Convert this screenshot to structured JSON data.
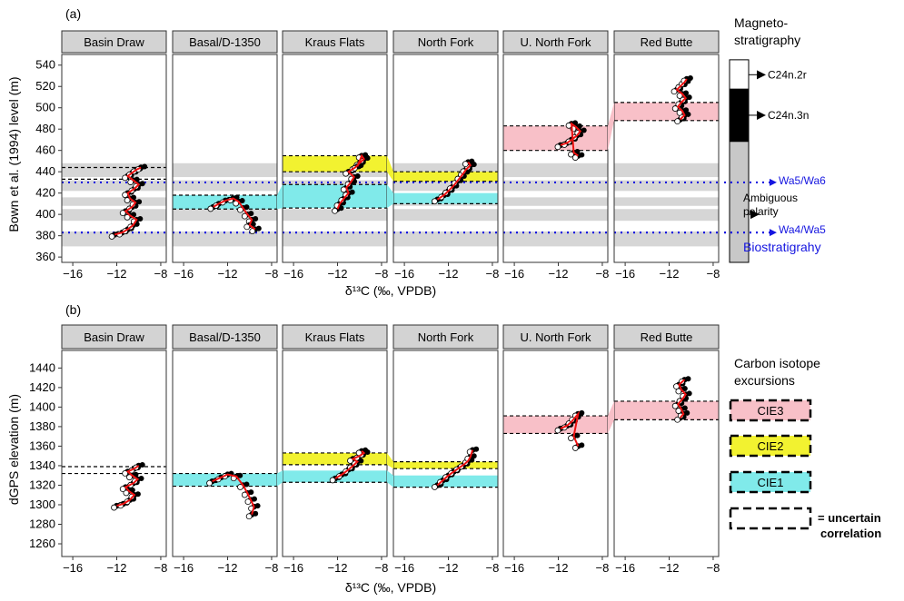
{
  "figure": {
    "panel_a_label": "(a)",
    "panel_b_label": "(b)"
  },
  "chart_data": [
    {
      "type": "scatter",
      "panel": "(a)",
      "facets": [
        "Basin Draw",
        "Basal/D-1350",
        "Kraus Flats",
        "North Fork",
        "U. North Fork",
        "Red Butte"
      ],
      "xlabel": "δ¹³C (‰, VPDB)",
      "ylabel": "Bown et al. (1994) level (m)",
      "xlim": [
        -17,
        -7.5
      ],
      "ylim": [
        355,
        550
      ],
      "xticks": [
        "−16",
        "−12",
        "−8"
      ],
      "xtick_values": [
        -16,
        -12,
        -8
      ],
      "yticks": [
        360,
        380,
        400,
        420,
        440,
        460,
        480,
        500,
        520,
        540
      ],
      "gray_bands": [
        [
          370,
          384
        ],
        [
          394,
          405
        ],
        [
          408,
          416
        ],
        [
          422,
          432
        ],
        [
          435,
          448
        ]
      ],
      "biostratigraphy_lines": [
        {
          "label": "Wa5/Wa6",
          "y": 430
        },
        {
          "label": "Wa4/Wa5",
          "y": 383
        }
      ],
      "cie_bands": [
        {
          "facet": "Basal/D-1350",
          "cie": "CIE1",
          "y": [
            405,
            418
          ]
        },
        {
          "facet": "Kraus Flats",
          "cie": "CIE1",
          "y": [
            406,
            428
          ]
        },
        {
          "facet": "Kraus Flats",
          "cie": "CIE2",
          "y": [
            440,
            455
          ]
        },
        {
          "facet": "North Fork",
          "cie": "CIE1",
          "y": [
            410,
            420
          ]
        },
        {
          "facet": "North Fork",
          "cie": "CIE2",
          "y": [
            431,
            440
          ]
        },
        {
          "facet": "U. North Fork",
          "cie": "CIE3",
          "y": [
            460,
            483
          ]
        },
        {
          "facet": "Red Butte",
          "cie": "CIE3",
          "y": [
            488,
            505
          ]
        }
      ],
      "uncertain_lines": [
        {
          "facet": "Basin Draw",
          "y": [
            433,
            444
          ]
        },
        {
          "facet": "Basal/D-1350",
          "y": [
            405,
            418
          ]
        },
        {
          "facet": "Kraus Flats",
          "y": [
            406,
            428,
            440,
            455
          ]
        },
        {
          "facet": "North Fork",
          "y": [
            410,
            431,
            440
          ]
        },
        {
          "facet": "U. North Fork",
          "y": [
            460,
            483
          ]
        },
        {
          "facet": "Red Butte",
          "y": [
            488,
            505
          ]
        }
      ],
      "series": [
        {
          "facet": "Basin Draw",
          "x": [
            -12.2,
            -11.5,
            -11.0,
            -10.5,
            -10.2,
            -10.8,
            -11.2,
            -10.6,
            -10.3,
            -10.8,
            -11.0,
            -10.4,
            -10.0,
            -10.5,
            -11.0,
            -10.6,
            -10.2,
            -9.8
          ],
          "y": [
            381,
            383,
            386,
            390,
            395,
            399,
            403,
            407,
            411,
            415,
            420,
            424,
            428,
            432,
            436,
            439,
            442,
            444
          ]
        },
        {
          "facet": "Basal/D-1350",
          "x": [
            -13.3,
            -12.8,
            -12.2,
            -11.5,
            -11.0,
            -10.6,
            -10.2,
            -9.8,
            -10.0,
            -9.5
          ],
          "y": [
            407,
            410,
            413,
            415,
            412,
            406,
            400,
            395,
            390,
            386
          ]
        },
        {
          "facet": "Kraus Flats",
          "x": [
            -12.0,
            -11.8,
            -11.4,
            -11.0,
            -11.2,
            -10.8,
            -10.5,
            -11.0,
            -10.4,
            -10.0,
            -9.6,
            -9.8,
            -10.2
          ],
          "y": [
            405,
            410,
            415,
            420,
            425,
            430,
            435,
            440,
            444,
            448,
            452,
            455,
            445
          ]
        },
        {
          "facet": "North Fork",
          "x": [
            -13.0,
            -12.4,
            -12.0,
            -11.6,
            -11.2,
            -10.9,
            -10.6,
            -10.4,
            -10.0,
            -10.2
          ],
          "y": [
            414,
            418,
            422,
            426,
            431,
            435,
            439,
            442,
            446,
            449
          ]
        },
        {
          "facet": "U. North Fork",
          "x": [
            -11.8,
            -11.2,
            -10.8,
            -10.3,
            -10.0,
            -10.4,
            -10.8,
            -10.6,
            -10.2
          ],
          "y": [
            465,
            467,
            470,
            474,
            478,
            482,
            485,
            458,
            455
          ]
        },
        {
          "facet": "Red Butte",
          "x": [
            -11.0,
            -10.6,
            -10.8,
            -11.2,
            -10.9,
            -10.5,
            -10.8,
            -11.3,
            -10.9,
            -10.6,
            -10.4
          ],
          "y": [
            489,
            493,
            497,
            501,
            505,
            509,
            513,
            517,
            521,
            524,
            527
          ]
        }
      ]
    },
    {
      "type": "scatter",
      "panel": "(b)",
      "facets": [
        "Basin Draw",
        "Basal/D-1350",
        "Kraus Flats",
        "North Fork",
        "U. North Fork",
        "Red Butte"
      ],
      "xlabel": "δ¹³C (‰, VPDB)",
      "ylabel": "dGPS elevation (m)",
      "xlim": [
        -17,
        -7.5
      ],
      "ylim": [
        1247,
        1458
      ],
      "xticks": [
        "−16",
        "−12",
        "−8"
      ],
      "xtick_values": [
        -16,
        -12,
        -8
      ],
      "yticks": [
        1260,
        1280,
        1300,
        1320,
        1340,
        1360,
        1380,
        1400,
        1420,
        1440
      ],
      "cie_bands": [
        {
          "facet": "Basal/D-1350",
          "cie": "CIE1",
          "y": [
            1319,
            1332
          ]
        },
        {
          "facet": "Kraus Flats",
          "cie": "CIE1",
          "y": [
            1323,
            1335
          ]
        },
        {
          "facet": "Kraus Flats",
          "cie": "CIE2",
          "y": [
            1341,
            1353
          ]
        },
        {
          "facet": "North Fork",
          "cie": "CIE1",
          "y": [
            1318,
            1330
          ]
        },
        {
          "facet": "North Fork",
          "cie": "CIE2",
          "y": [
            1337,
            1344
          ]
        },
        {
          "facet": "U. North Fork",
          "cie": "CIE3",
          "y": [
            1373,
            1391
          ]
        },
        {
          "facet": "Red Butte",
          "cie": "CIE3",
          "y": [
            1387,
            1406
          ]
        }
      ],
      "uncertain_lines": [
        {
          "facet": "Basin Draw",
          "y": [
            1332,
            1339
          ]
        },
        {
          "facet": "Basal/D-1350",
          "y": [
            1319,
            1332
          ]
        },
        {
          "facet": "Kraus Flats",
          "y": [
            1323,
            1341,
            1353
          ]
        },
        {
          "facet": "North Fork",
          "y": [
            1318,
            1337,
            1344
          ]
        },
        {
          "facet": "U. North Fork",
          "y": [
            1373,
            1391
          ]
        },
        {
          "facet": "Red Butte",
          "y": [
            1387,
            1406
          ]
        }
      ],
      "series": [
        {
          "facet": "Basin Draw",
          "x": [
            -12.0,
            -11.4,
            -10.8,
            -10.4,
            -10.9,
            -11.2,
            -10.5,
            -10.1,
            -10.6,
            -11.0,
            -10.4,
            -10.0
          ],
          "y": [
            1299,
            1301,
            1305,
            1310,
            1314,
            1318,
            1322,
            1326,
            1330,
            1334,
            1337,
            1340
          ]
        },
        {
          "facet": "Basal/D-1350",
          "x": [
            -13.4,
            -12.6,
            -12.0,
            -11.2,
            -10.6,
            -10.2,
            -9.9,
            -9.6,
            -9.8
          ],
          "y": [
            1324,
            1328,
            1331,
            1329,
            1320,
            1312,
            1305,
            1298,
            1290
          ]
        },
        {
          "facet": "Kraus Flats",
          "x": [
            -12.2,
            -11.6,
            -11.0,
            -10.6,
            -10.2,
            -10.6,
            -10.0,
            -9.6,
            -9.8
          ],
          "y": [
            1327,
            1331,
            1336,
            1340,
            1344,
            1347,
            1350,
            1353,
            1355
          ]
        },
        {
          "facet": "North Fork",
          "x": [
            -13.0,
            -12.5,
            -12.0,
            -11.5,
            -11.0,
            -10.6,
            -10.2,
            -10.0,
            -9.8
          ],
          "y": [
            1320,
            1325,
            1330,
            1334,
            1338,
            1341,
            1345,
            1349,
            1356
          ]
        },
        {
          "facet": "U. North Fork",
          "x": [
            -11.8,
            -11.2,
            -10.8,
            -10.5,
            -10.2,
            -10.6,
            -10.2
          ],
          "y": [
            1378,
            1381,
            1385,
            1389,
            1393,
            1370,
            1360
          ]
        },
        {
          "facet": "Red Butte",
          "x": [
            -11.0,
            -10.7,
            -10.9,
            -11.2,
            -10.8,
            -10.5,
            -10.9,
            -11.1,
            -10.6
          ],
          "y": [
            1389,
            1393,
            1398,
            1403,
            1408,
            1413,
            1418,
            1423,
            1428
          ]
        }
      ]
    }
  ],
  "magnetostratigraphy": {
    "title_line1": "Magneto-",
    "title_line2": "stratigraphy",
    "ylim": [
      355,
      550
    ],
    "segments": [
      {
        "y": [
          355,
          468
        ],
        "color": "#c8c8c8"
      },
      {
        "y": [
          468,
          518
        ],
        "color": "#000000"
      },
      {
        "y": [
          518,
          545
        ],
        "color": "#ffffff"
      }
    ],
    "labels": [
      {
        "text": "C24n.2r",
        "y": 531
      },
      {
        "text": "C24n.3n",
        "y": 493
      }
    ],
    "ambiguous_line1": "Ambiguous",
    "ambiguous_line2": "polarity",
    "ambiguous_y": 400,
    "wa_labels": [
      "Wa5/Wa6",
      "Wa4/Wa5"
    ],
    "biostrat_label": "Biostratigrahy",
    "biostrat_color": "#1515e0"
  },
  "legend_b": {
    "title_line1": "Carbon isotope",
    "title_line2": "excursions",
    "items": [
      {
        "label": "CIE3",
        "color": "#f8c0c8"
      },
      {
        "label": "CIE2",
        "color": "#f2f230"
      },
      {
        "label": "CIE1",
        "color": "#80eaea"
      }
    ],
    "uncertain_line1": "= uncertain",
    "uncertain_line2": "correlation"
  },
  "colors": {
    "CIE1": "#80eaea",
    "CIE2": "#f2f230",
    "CIE3": "#f8c0c8",
    "gray_band": "#d6d6d6",
    "strip": "#d3d3d3",
    "trend_line": "#ee1111",
    "biostrat_line": "#1515e0"
  }
}
